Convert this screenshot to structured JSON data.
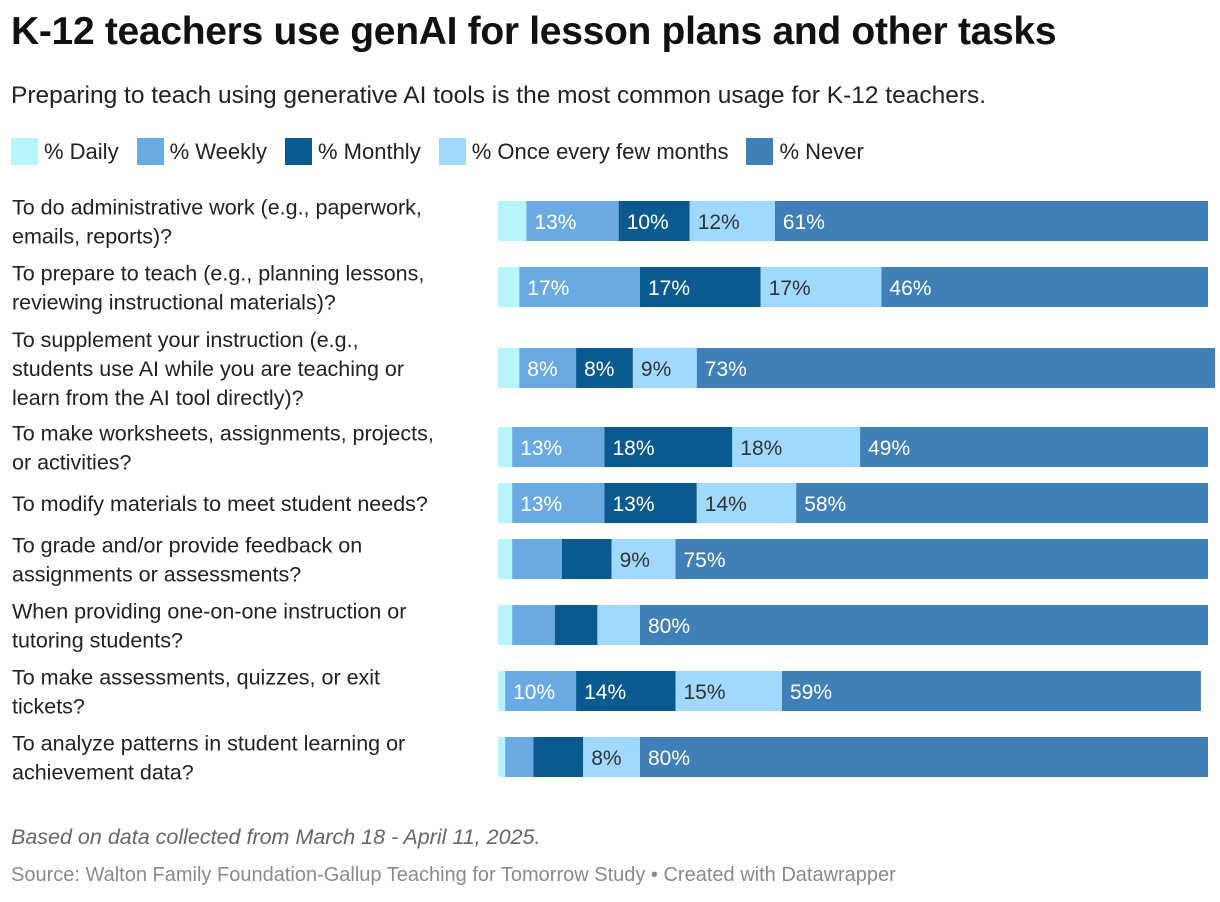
{
  "chart_data": {
    "type": "bar",
    "orientation": "horizontal",
    "stacked": true,
    "title": "K-12 teachers use genAI for lesson plans and other tasks",
    "subtitle": "Preparing to teach using generative AI tools is the most common usage for K-12 teachers.",
    "legend_position": "top",
    "categories": [
      [
        "To do administrative work (e.g., paperwork,",
        "emails, reports)?"
      ],
      [
        "To prepare to teach (e.g., planning lessons,",
        "reviewing instructional materials)?"
      ],
      [
        "To supplement your instruction (e.g.,",
        "students use AI while you are teaching or",
        "learn from the AI tool directly)?"
      ],
      [
        "To make worksheets, assignments, projects,",
        "or activities?"
      ],
      [
        "To modify materials to meet student needs?"
      ],
      [
        "To grade and/or provide feedback on",
        "assignments or assessments?"
      ],
      [
        "When providing one-on-one instruction or",
        "tutoring students?"
      ],
      [
        "To make assessments, quizzes, or exit",
        "tickets?"
      ],
      [
        "To analyze patterns in student learning or",
        "achievement data?"
      ]
    ],
    "series": [
      {
        "name": "% Daily",
        "color": "#b7f5fb",
        "label_color": "#333333",
        "values": [
          4,
          3,
          3,
          2,
          2,
          2,
          2,
          1,
          1
        ]
      },
      {
        "name": "% Weekly",
        "color": "#6aaae3",
        "label_color": "#ffffff",
        "values": [
          13,
          17,
          8,
          13,
          13,
          7,
          6,
          10,
          4
        ]
      },
      {
        "name": "% Monthly",
        "color": "#0a5a8f",
        "label_color": "#ffffff",
        "values": [
          10,
          17,
          8,
          18,
          13,
          7,
          6,
          14,
          7
        ]
      },
      {
        "name": "% Once every few months",
        "color": "#a0d9fd",
        "label_color": "#333333",
        "values": [
          12,
          17,
          9,
          18,
          14,
          9,
          6,
          15,
          8
        ]
      },
      {
        "name": "% Never",
        "color": "#3f80b8",
        "label_color": "#ffffff",
        "values": [
          61,
          46,
          73,
          49,
          58,
          75,
          80,
          59,
          80
        ]
      }
    ],
    "label_min_value": 8,
    "xlim": [
      0,
      100
    ]
  },
  "notes": "Based on data collected from March 18 - April 11, 2025.",
  "source": "Source: Walton Family Foundation-Gallup Teaching for Tomorrow Study • Created with Datawrapper"
}
